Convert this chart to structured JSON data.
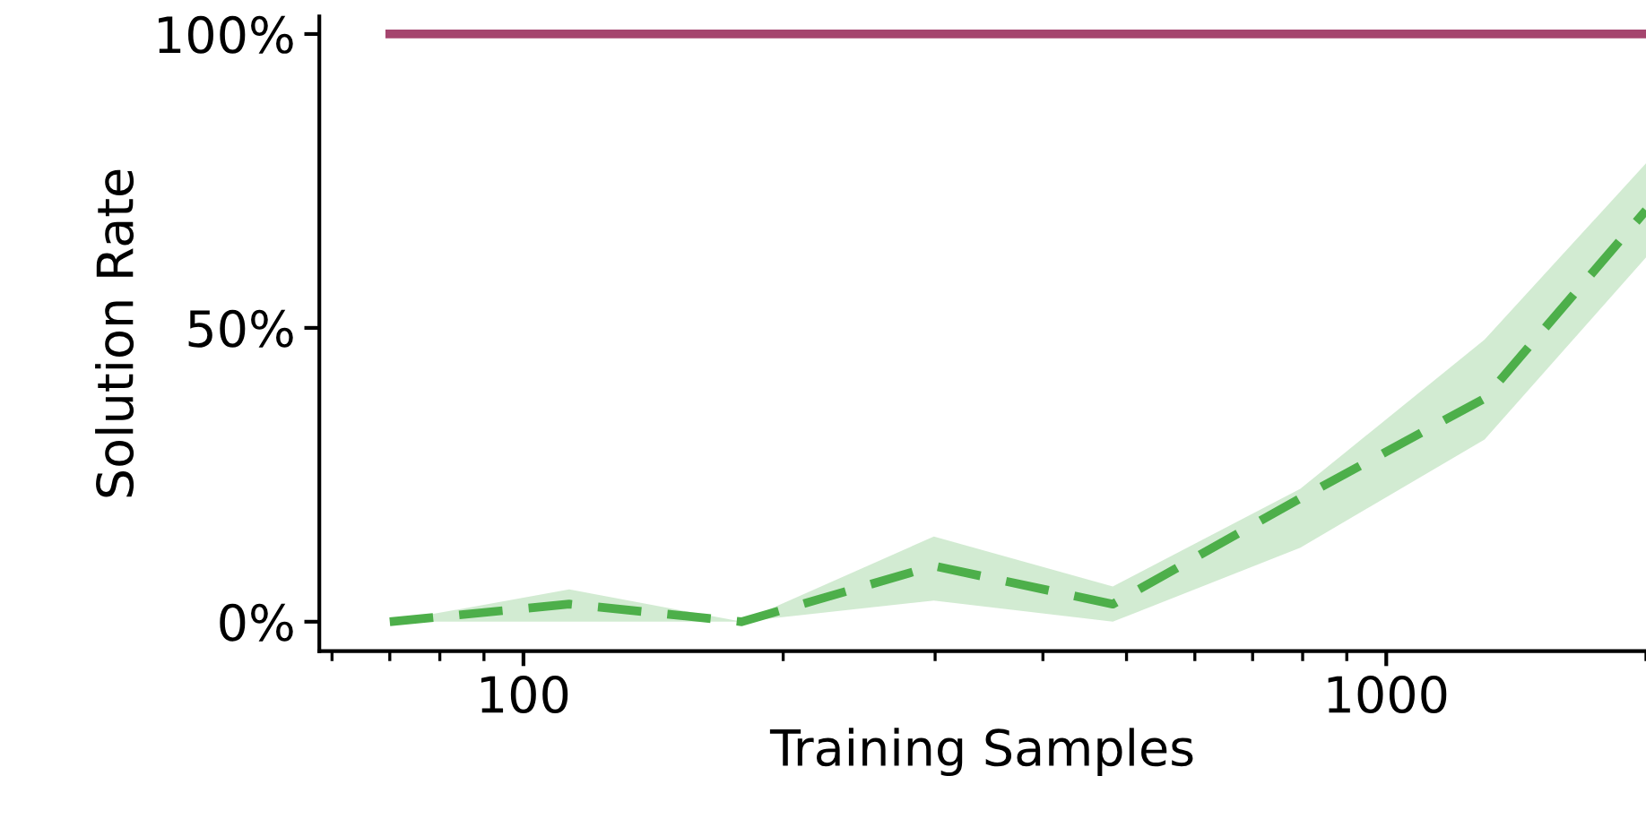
{
  "chart_data": {
    "type": "line",
    "xlabel": "Training Samples",
    "ylabel": "Solution Rate",
    "log": "x",
    "xlim": [
      58,
      2000
    ],
    "xticks": [
      100,
      1000
    ],
    "ylim": [
      -5,
      103
    ],
    "yticks": [
      {
        "value": 0,
        "label": "0%"
      },
      {
        "value": 50,
        "label": "50%"
      },
      {
        "value": 100,
        "label": "100%"
      }
    ],
    "grid": false,
    "legend": false,
    "series": [
      {
        "color": "#a5456e",
        "x": [
          70,
          113,
          179,
          299,
          482,
          795,
          1300,
          2000
        ],
        "values": [
          100,
          100,
          100,
          100,
          100,
          100,
          100,
          100
        ],
        "line_style": "solid"
      },
      {
        "color": "#4daf4a",
        "x": [
          70,
          113,
          179,
          299,
          482,
          795,
          1300,
          2000
        ],
        "values": [
          0,
          3,
          0,
          9.5,
          3,
          21,
          38,
          70
        ],
        "lower": [
          0,
          0,
          0,
          3.6,
          0,
          12.6,
          31,
          62
        ],
        "upper": [
          0,
          5.5,
          0,
          14.5,
          6,
          22.6,
          48,
          78
        ],
        "line_style": "dashed"
      }
    ]
  }
}
